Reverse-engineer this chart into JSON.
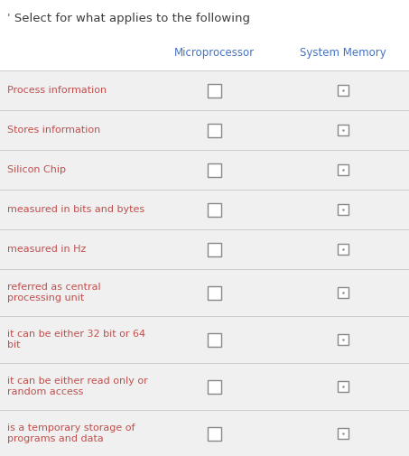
{
  "title": "ˈ Select for what applies to the following",
  "title_color": "#3d3d3d",
  "title_fontsize": 9.5,
  "col1_header": "Microprocessor",
  "col2_header": "System Memory",
  "col_header_color": "#4472c4",
  "col_header_fontsize": 8.5,
  "rows": [
    "Process information",
    "Stores information",
    "Silicon Chip",
    "measured in bits and bytes",
    "measured in Hz",
    "referred as central\nprocessing unit",
    "it can be either 32 bit or 64\nbit",
    "it can be either read only or\nrandom access",
    "is a temporary storage of\nprograms and data"
  ],
  "row_label_color": "#c0504d",
  "row_label_fontsize": 8.0,
  "bg_color": "#f0f0f0",
  "white_color": "#ffffff",
  "checkbox_border_color": "#888888",
  "separator_color": "#cccccc",
  "dot_color": "#999999",
  "fig_width": 4.53,
  "fig_height": 5.05,
  "dpi": 100
}
